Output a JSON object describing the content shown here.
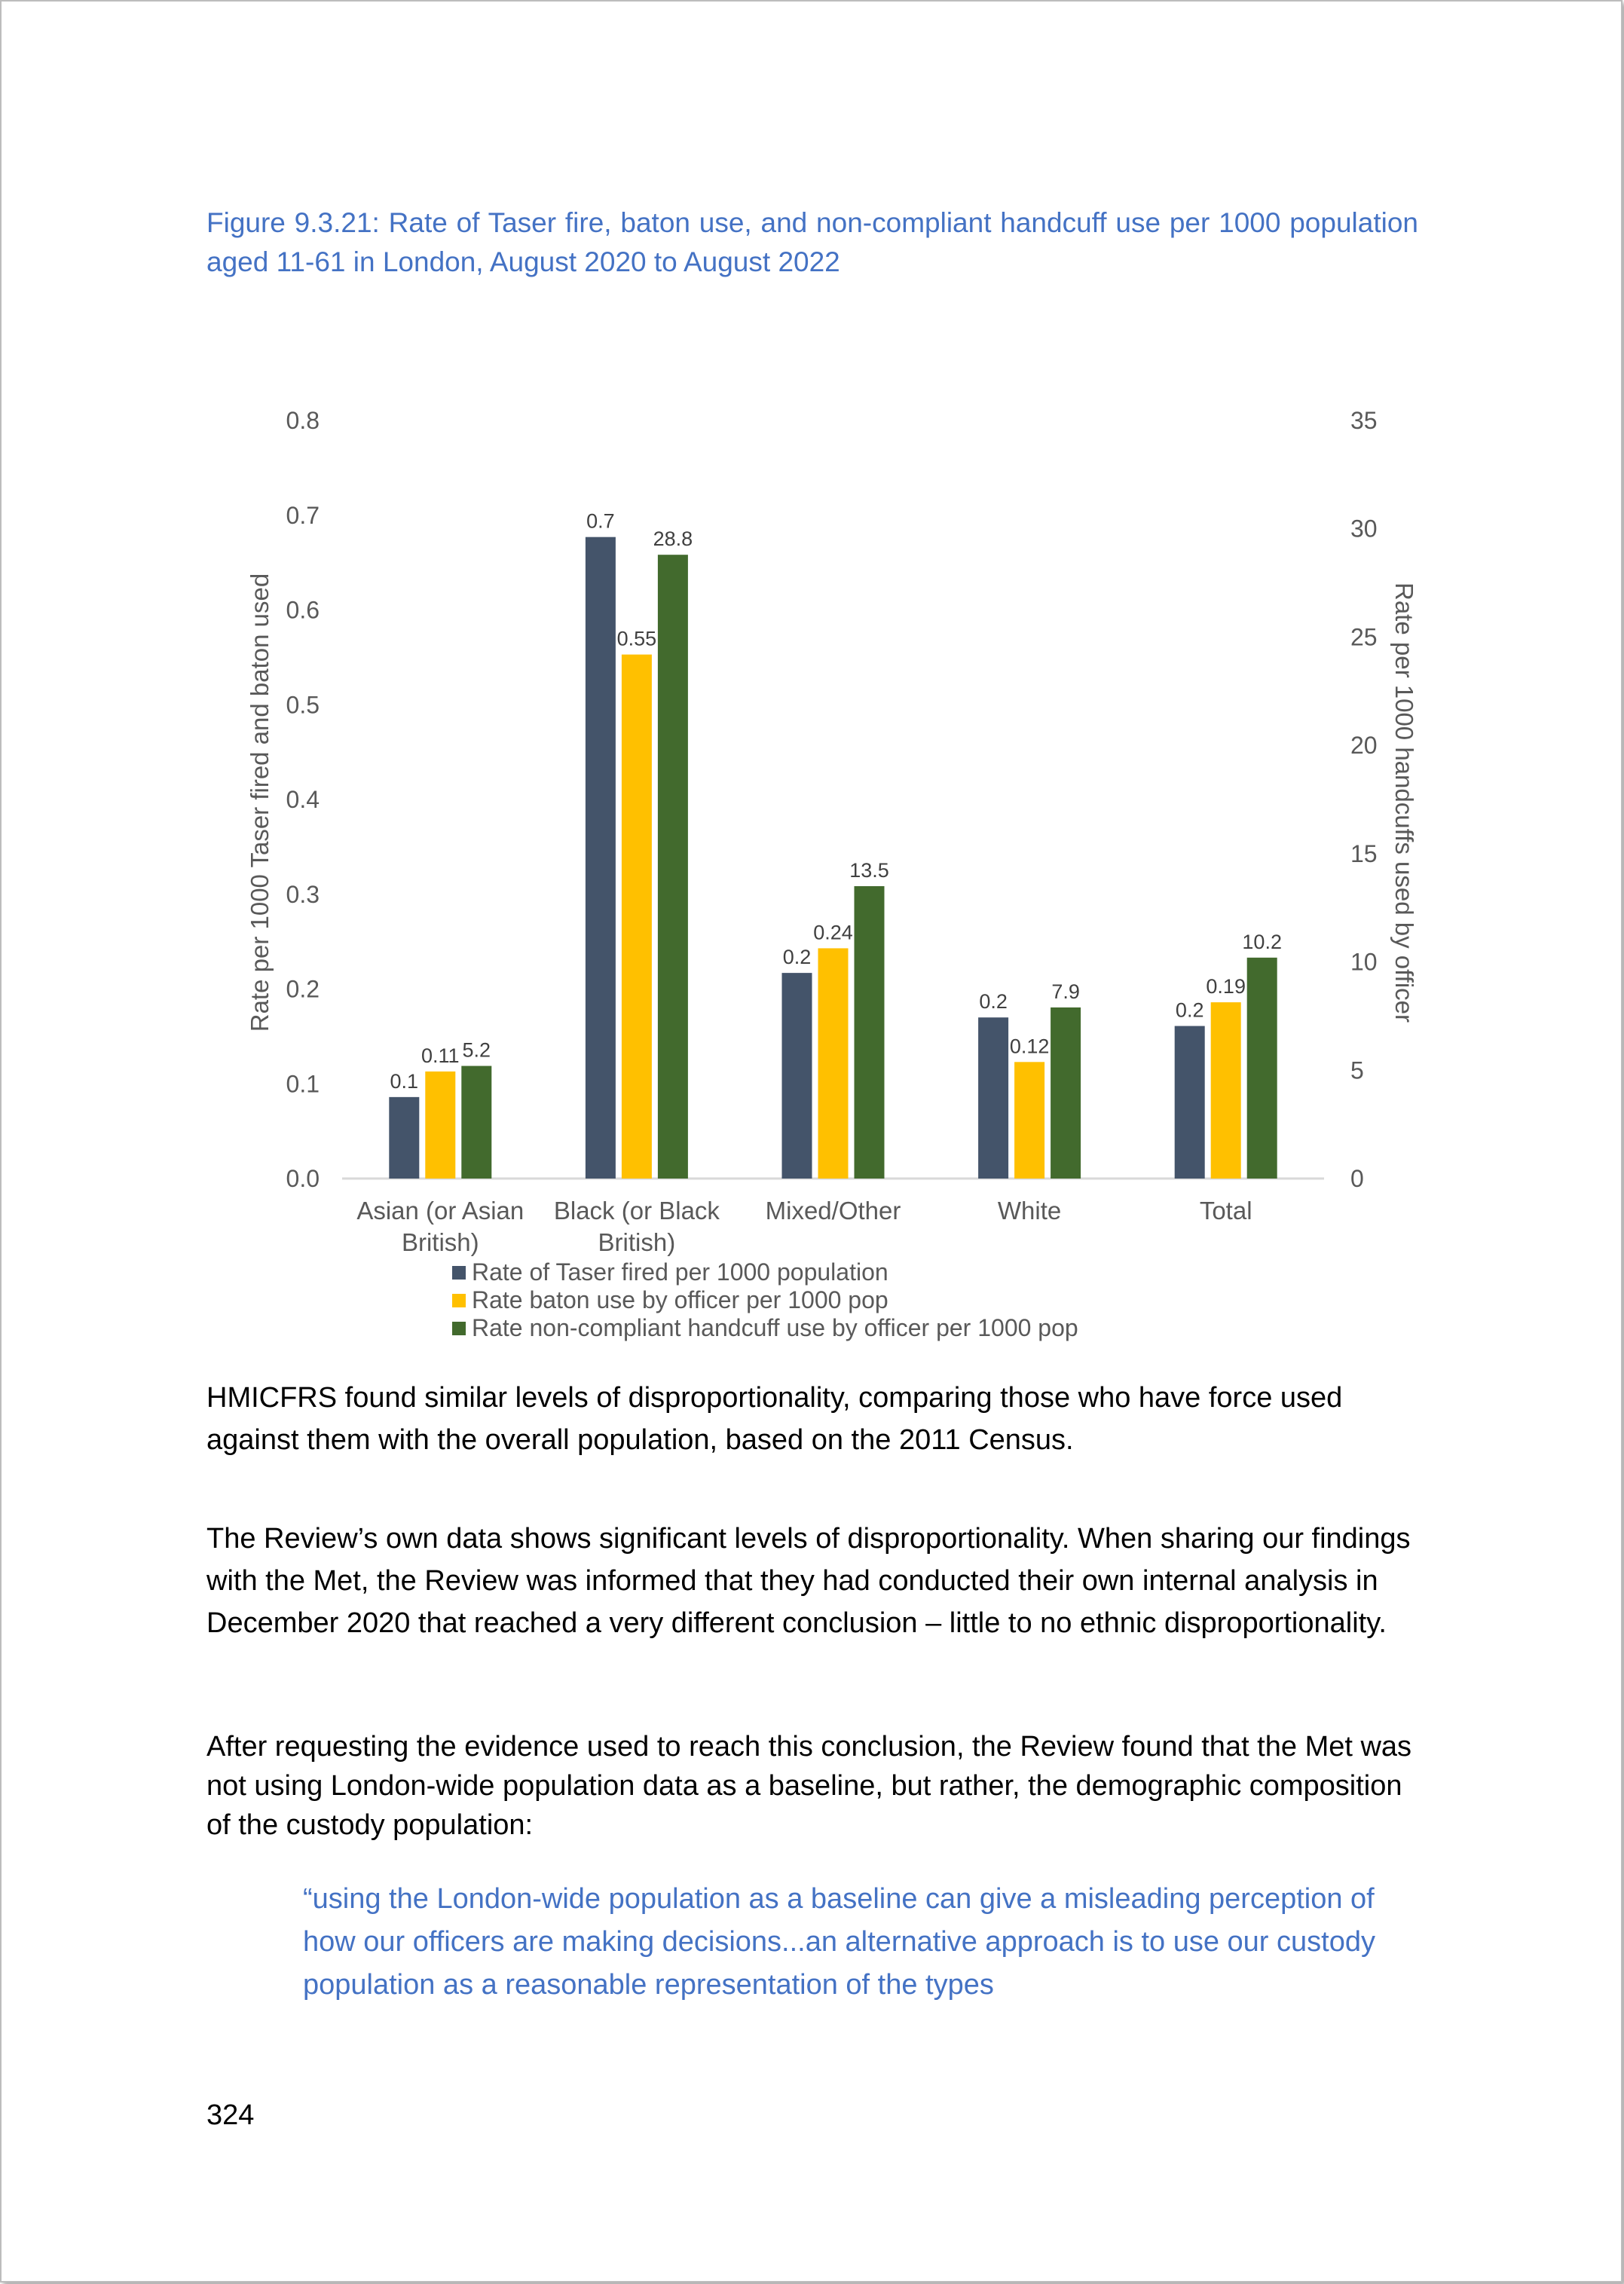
{
  "caption": "Figure 9.3.21: Rate of Taser fire, baton use, and non-compliant handcuff use per 1000 population aged 11-61 in London, August 2020 to August 2022",
  "chart_data": {
    "type": "bar",
    "categories": [
      [
        "Asian (or Asian",
        "British)"
      ],
      [
        "Black (or Black",
        "British)"
      ],
      [
        "Mixed/Other"
      ],
      [
        "White"
      ],
      [
        "Total"
      ]
    ],
    "series": [
      {
        "name": "Rate of Taser fired per 1000 population",
        "axis": "left",
        "color": "#44546a",
        "values": [
          0.086,
          0.677,
          0.217,
          0.17,
          0.161
        ],
        "labels": [
          "0.1",
          "0.7",
          "0.2",
          "0.2",
          "0.2"
        ]
      },
      {
        "name": "Rate baton use by officer per 1000 pop",
        "axis": "left",
        "color": "#ffc000",
        "values": [
          0.113,
          0.553,
          0.243,
          0.123,
          0.186
        ],
        "labels": [
          "0.11",
          "0.55",
          "0.24",
          "0.12",
          "0.19"
        ]
      },
      {
        "name": "Rate non-compliant handcuff use by officer per 1000 pop",
        "axis": "right",
        "color": "#426a2d",
        "values": [
          5.2,
          28.8,
          13.5,
          7.9,
          10.2
        ],
        "labels": [
          "5.2",
          "28.8",
          "13.5",
          "7.9",
          "10.2"
        ]
      }
    ],
    "ylabel": "Rate per 1000 Taser fired and baton used",
    "y2label": "Rate per 1000 handcuffs used by officer",
    "ylim": [
      0,
      0.8
    ],
    "y2lim": [
      0,
      35
    ],
    "yticks": [
      "0.0",
      "0.1",
      "0.2",
      "0.3",
      "0.4",
      "0.5",
      "0.6",
      "0.7",
      "0.8"
    ],
    "y2ticks": [
      "0",
      "5",
      "10",
      "15",
      "20",
      "25",
      "30",
      "35"
    ],
    "grid": false,
    "legend": "bottom"
  },
  "paragraphs": [
    "HMICFRS found similar levels of disproportionality, comparing those who have force used against them with the overall population, based on the 2011 Census.",
    "The Review’s own data shows significant levels of disproportionality. When sharing our findings with the Met, the Review was informed that they had conducted their own internal analysis in December 2020 that reached a very different conclusion – little to no ethnic disproportionality.",
    "After requesting the evidence used to reach this conclusion, the Review found that the Met was not using London-wide population data as a baseline, but rather, the demographic composition of the custody population:"
  ],
  "quote": "“using the London-wide population as a baseline can give a misleading perception of how our officers are making decisions...an alternative approach is to use our custody population as a reasonable representation of the types",
  "page_number": "324"
}
